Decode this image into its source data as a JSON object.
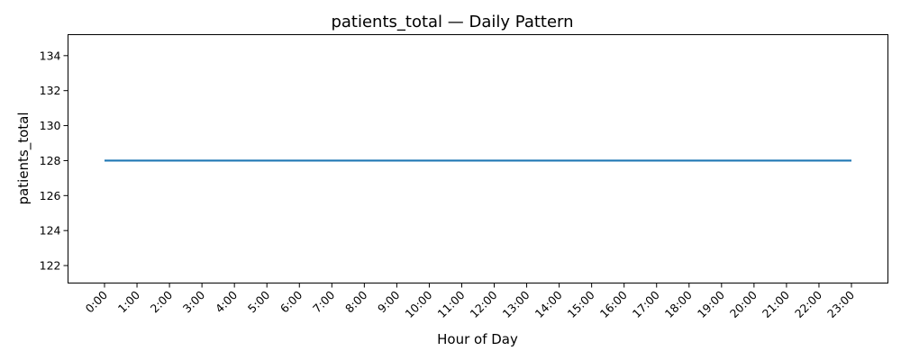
{
  "chart_data": {
    "type": "line",
    "title": "patients_total — Daily Pattern",
    "xlabel": "Hour of Day",
    "ylabel": "patients_total",
    "categories": [
      "0:00",
      "1:00",
      "2:00",
      "3:00",
      "4:00",
      "5:00",
      "6:00",
      "7:00",
      "8:00",
      "9:00",
      "10:00",
      "11:00",
      "12:00",
      "13:00",
      "14:00",
      "15:00",
      "16:00",
      "17:00",
      "18:00",
      "19:00",
      "20:00",
      "21:00",
      "22:00",
      "23:00"
    ],
    "series": [
      {
        "values": [
          128,
          128,
          128,
          128,
          128,
          128,
          128,
          128,
          128,
          128,
          128,
          128,
          128,
          128,
          128,
          128,
          128,
          128,
          128,
          128,
          128,
          128,
          128,
          128
        ],
        "color": "#1f77b4"
      }
    ],
    "yticks": [
      122,
      124,
      126,
      128,
      130,
      132,
      134
    ],
    "ylim": [
      121,
      135.2
    ],
    "grid": false,
    "legend": "none"
  }
}
